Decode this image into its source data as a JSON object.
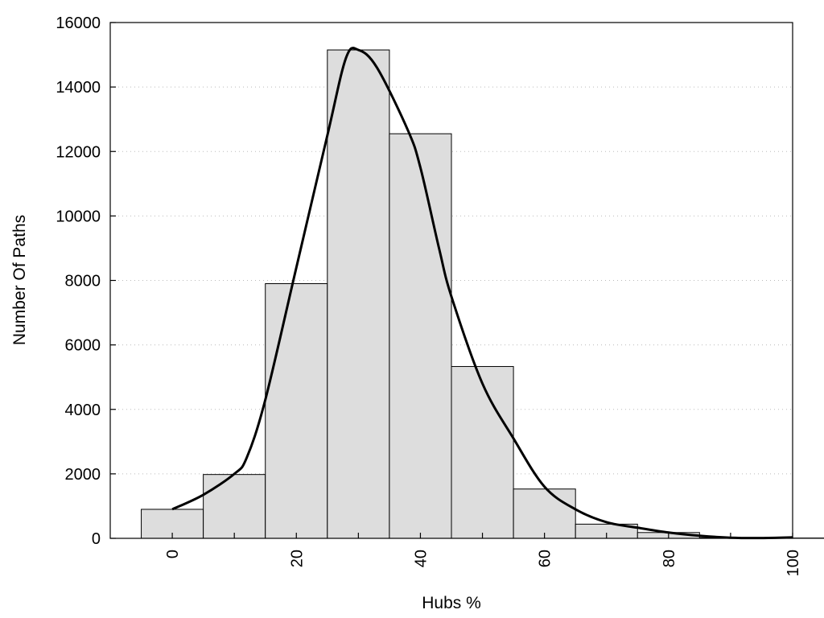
{
  "chart_data": {
    "type": "bar",
    "title": "",
    "xlabel": "Hubs %",
    "ylabel": "Number Of Paths",
    "xlim": [
      -10,
      100
    ],
    "ylim": [
      0,
      16000
    ],
    "x_ticks": [
      0,
      20,
      40,
      60,
      80,
      100
    ],
    "y_ticks": [
      0,
      2000,
      4000,
      6000,
      8000,
      10000,
      12000,
      14000,
      16000
    ],
    "grid": "horizontal dotted",
    "bar_color": "#dddddd",
    "bin_width": 10,
    "series": [
      {
        "type": "histogram",
        "x": [
          0,
          10,
          20,
          30,
          40,
          50,
          60,
          70,
          80,
          90,
          100
        ],
        "values": [
          900,
          1980,
          7900,
          15150,
          12550,
          5330,
          1530,
          440,
          180,
          20,
          10
        ]
      },
      {
        "type": "line",
        "x": [
          0,
          5,
          10,
          12,
          15,
          20,
          25,
          28,
          30,
          33,
          38,
          40,
          43,
          45,
          50,
          55,
          60,
          65,
          70,
          75,
          80,
          85,
          90,
          95,
          100
        ],
        "values": [
          900,
          1350,
          2000,
          2500,
          4300,
          8400,
          12500,
          14900,
          15150,
          14600,
          12650,
          11500,
          9000,
          7500,
          4800,
          3100,
          1600,
          900,
          500,
          330,
          180,
          80,
          20,
          10,
          30
        ]
      }
    ]
  }
}
